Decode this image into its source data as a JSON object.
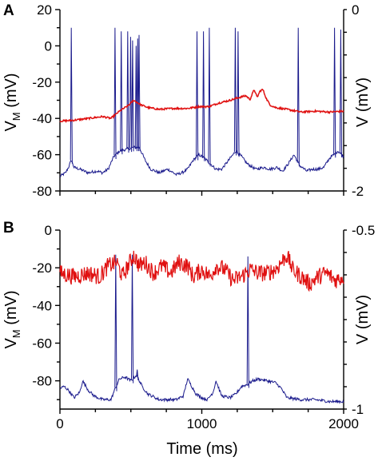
{
  "chart_data": [
    {
      "type": "line",
      "panel_label": "A",
      "xlim": [
        0,
        2000
      ],
      "ylim_left": [
        -80,
        20
      ],
      "ylim_right": [
        -2,
        0
      ],
      "left_ticks": [
        20,
        0,
        -20,
        -40,
        -60,
        -80
      ],
      "right_ticks": [
        0,
        -2
      ],
      "ylabel_left": {
        "main": "V",
        "sub": "M",
        "tail": " (mV)"
      },
      "ylabel_right": "V (mV)",
      "colors": {
        "vm": "#1a1a8c",
        "v": "#e01010"
      },
      "series": [
        {
          "axis": "left",
          "color": "#1a1a8c",
          "baseline": [
            [
              0,
              -72
            ],
            [
              40,
              -70
            ],
            [
              60,
              -67
            ],
            [
              80,
              -63
            ],
            [
              100,
              -67
            ],
            [
              140,
              -68
            ],
            [
              200,
              -70
            ],
            [
              260,
              -69
            ],
            [
              300,
              -70
            ],
            [
              340,
              -68
            ],
            [
              380,
              -61
            ],
            [
              420,
              -58
            ],
            [
              470,
              -57
            ],
            [
              520,
              -56
            ],
            [
              560,
              -56
            ],
            [
              600,
              -63
            ],
            [
              640,
              -68
            ],
            [
              700,
              -70
            ],
            [
              760,
              -68
            ],
            [
              820,
              -71
            ],
            [
              860,
              -70
            ],
            [
              900,
              -68
            ],
            [
              940,
              -63
            ],
            [
              980,
              -60
            ],
            [
              1020,
              -62
            ],
            [
              1060,
              -65
            ],
            [
              1100,
              -68
            ],
            [
              1140,
              -68
            ],
            [
              1180,
              -64
            ],
            [
              1240,
              -58
            ],
            [
              1280,
              -61
            ],
            [
              1320,
              -65
            ],
            [
              1380,
              -68
            ],
            [
              1440,
              -67
            ],
            [
              1480,
              -68
            ],
            [
              1530,
              -67
            ],
            [
              1570,
              -69
            ],
            [
              1610,
              -65
            ],
            [
              1650,
              -60
            ],
            [
              1690,
              -66
            ],
            [
              1740,
              -69
            ],
            [
              1780,
              -68
            ],
            [
              1820,
              -68
            ],
            [
              1860,
              -67
            ],
            [
              1900,
              -62
            ],
            [
              1960,
              -58
            ],
            [
              2000,
              -61
            ]
          ],
          "spikes": [
            [
              80,
              10
            ],
            [
              388,
              10
            ],
            [
              432,
              8
            ],
            [
              478,
              8
            ],
            [
              498,
              5
            ],
            [
              512,
              3
            ],
            [
              537,
              0
            ],
            [
              548,
              4
            ],
            [
              558,
              6
            ],
            [
              966,
              8
            ],
            [
              1012,
              8
            ],
            [
              1053,
              10
            ],
            [
              1236,
              10
            ],
            [
              1256,
              8
            ],
            [
              1680,
              10
            ],
            [
              1936,
              10
            ],
            [
              1980,
              9
            ]
          ]
        },
        {
          "axis": "right",
          "color": "#e01010",
          "points": [
            [
              0,
              -1.23
            ],
            [
              100,
              -1.22
            ],
            [
              200,
              -1.2
            ],
            [
              300,
              -1.18
            ],
            [
              360,
              -1.2
            ],
            [
              420,
              -1.12
            ],
            [
              480,
              -1.06
            ],
            [
              520,
              -1.0
            ],
            [
              570,
              -1.05
            ],
            [
              620,
              -1.08
            ],
            [
              700,
              -1.1
            ],
            [
              800,
              -1.09
            ],
            [
              900,
              -1.09
            ],
            [
              980,
              -1.07
            ],
            [
              1050,
              -1.07
            ],
            [
              1120,
              -1.03
            ],
            [
              1200,
              -1.0
            ],
            [
              1260,
              -0.97
            ],
            [
              1310,
              -0.95
            ],
            [
              1340,
              -0.99
            ],
            [
              1370,
              -0.88
            ],
            [
              1390,
              -0.97
            ],
            [
              1410,
              -0.9
            ],
            [
              1430,
              -0.88
            ],
            [
              1455,
              -0.98
            ],
            [
              1480,
              -1.05
            ],
            [
              1520,
              -1.08
            ],
            [
              1600,
              -1.1
            ],
            [
              1700,
              -1.13
            ],
            [
              1800,
              -1.12
            ],
            [
              1900,
              -1.13
            ],
            [
              2000,
              -1.12
            ]
          ]
        }
      ]
    },
    {
      "type": "line",
      "panel_label": "B",
      "xlim": [
        0,
        2000
      ],
      "ylim_left": [
        -95,
        0
      ],
      "ylim_right": [
        -1,
        -0.5
      ],
      "left_ticks": [
        0,
        -20,
        -40,
        -60,
        -80
      ],
      "right_ticks": [
        -0.5,
        -1
      ],
      "xticks": [
        0,
        1000,
        2000
      ],
      "xlabel": "Time (ms)",
      "ylabel_left": {
        "main": "V",
        "sub": "M",
        "tail": " (mV)"
      },
      "ylabel_right": "V (mV)",
      "colors": {
        "vm": "#1a1a8c",
        "v": "#e01010"
      },
      "series": [
        {
          "axis": "left",
          "color": "#1a1a8c",
          "baseline": [
            [
              0,
              -84
            ],
            [
              30,
              -83
            ],
            [
              60,
              -85
            ],
            [
              100,
              -89
            ],
            [
              140,
              -86
            ],
            [
              160,
              -80
            ],
            [
              200,
              -85
            ],
            [
              240,
              -88
            ],
            [
              300,
              -90
            ],
            [
              360,
              -90
            ],
            [
              390,
              -84
            ],
            [
              420,
              -79
            ],
            [
              460,
              -78
            ],
            [
              500,
              -80
            ],
            [
              540,
              -77
            ],
            [
              580,
              -83
            ],
            [
              620,
              -87
            ],
            [
              700,
              -90
            ],
            [
              760,
              -90
            ],
            [
              820,
              -90
            ],
            [
              870,
              -88
            ],
            [
              900,
              -79
            ],
            [
              930,
              -83
            ],
            [
              960,
              -87
            ],
            [
              1000,
              -89
            ],
            [
              1040,
              -90
            ],
            [
              1080,
              -86
            ],
            [
              1100,
              -80
            ],
            [
              1140,
              -88
            ],
            [
              1200,
              -89
            ],
            [
              1240,
              -87
            ],
            [
              1280,
              -83
            ],
            [
              1320,
              -82
            ],
            [
              1360,
              -80
            ],
            [
              1400,
              -79
            ],
            [
              1460,
              -80
            ],
            [
              1520,
              -81
            ],
            [
              1560,
              -84
            ],
            [
              1600,
              -89
            ],
            [
              1700,
              -90
            ],
            [
              1800,
              -90
            ],
            [
              1900,
              -91
            ],
            [
              2000,
              -91
            ]
          ],
          "spikes": [
            [
              393,
              -13
            ],
            [
              510,
              -13
            ],
            [
              1325,
              -14
            ],
            [
              545,
              -74
            ]
          ]
        },
        {
          "axis": "right",
          "color": "#e01010",
          "points": [
            [
              0,
              -0.62
            ],
            [
              100,
              -0.63
            ],
            [
              200,
              -0.62
            ],
            [
              280,
              -0.63
            ],
            [
              340,
              -0.6
            ],
            [
              400,
              -0.59
            ],
            [
              440,
              -0.63
            ],
            [
              480,
              -0.6
            ],
            [
              520,
              -0.57
            ],
            [
              560,
              -0.6
            ],
            [
              600,
              -0.59
            ],
            [
              660,
              -0.62
            ],
            [
              720,
              -0.6
            ],
            [
              780,
              -0.62
            ],
            [
              840,
              -0.59
            ],
            [
              900,
              -0.6
            ],
            [
              940,
              -0.63
            ],
            [
              1000,
              -0.61
            ],
            [
              1060,
              -0.63
            ],
            [
              1100,
              -0.6
            ],
            [
              1160,
              -0.61
            ],
            [
              1220,
              -0.64
            ],
            [
              1280,
              -0.63
            ],
            [
              1340,
              -0.61
            ],
            [
              1400,
              -0.62
            ],
            [
              1460,
              -0.62
            ],
            [
              1520,
              -0.61
            ],
            [
              1560,
              -0.59
            ],
            [
              1600,
              -0.57
            ],
            [
              1640,
              -0.61
            ],
            [
              1700,
              -0.63
            ],
            [
              1760,
              -0.65
            ],
            [
              1820,
              -0.63
            ],
            [
              1880,
              -0.62
            ],
            [
              1940,
              -0.64
            ],
            [
              2000,
              -0.63
            ]
          ]
        }
      ]
    }
  ]
}
